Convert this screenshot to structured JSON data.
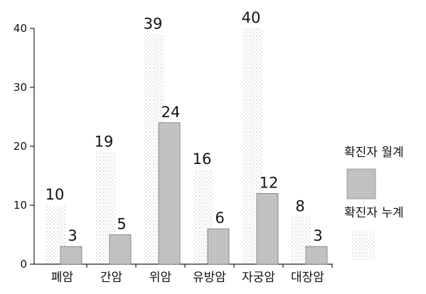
{
  "chart_data": {
    "type": "bar",
    "categories": [
      "폐암",
      "간암",
      "위암",
      "유방암",
      "자궁암",
      "대장암"
    ],
    "series": [
      {
        "name": "확진자 월계",
        "values": [
          3,
          5,
          24,
          6,
          12,
          3
        ]
      },
      {
        "name": "확진자 누계",
        "values": [
          10,
          19,
          39,
          16,
          40,
          8
        ]
      }
    ],
    "ylim": [
      0,
      40
    ],
    "yticks": [
      0,
      10,
      20,
      30,
      40
    ],
    "grid": false,
    "legend": "right",
    "colors": {
      "monthly": "#bdbdbd",
      "cumulative_dots": "#9a9a9a"
    }
  }
}
